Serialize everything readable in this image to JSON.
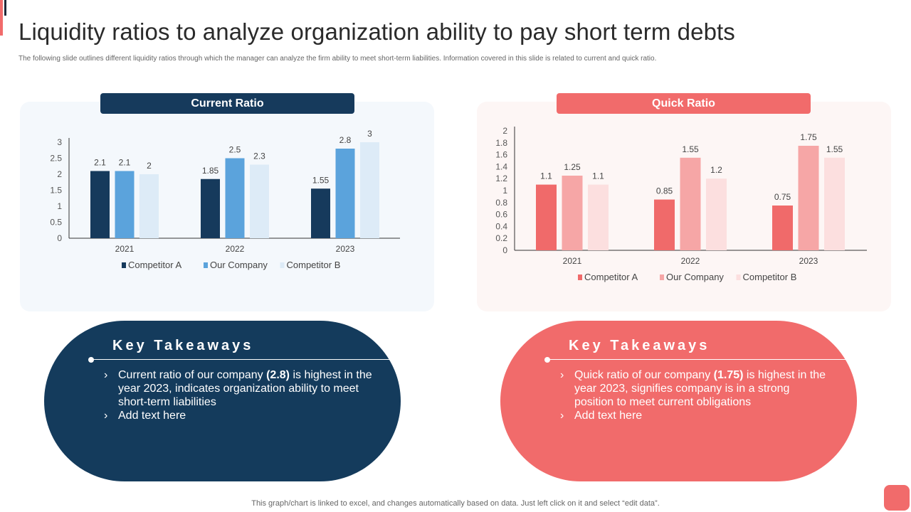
{
  "title": "Liquidity ratios to analyze organization ability to pay short term debts",
  "subtitle": "The following slide outlines different liquidity ratios through which the manager can analyze the firm ability to meet short-term liabilities.  Information covered in this slide is related to current and quick ratio.",
  "footer": "This graph/chart is linked to excel,  and changes automatically based on data. Just left click on it and select “edit data”.",
  "colors": {
    "navy": "#163a5c",
    "coral": "#f16b6b"
  },
  "chart_data": [
    {
      "type": "bar",
      "title": "Current Ratio",
      "categories": [
        "2021",
        "2022",
        "2023"
      ],
      "ylim": [
        0,
        3
      ],
      "yticks": [
        "0",
        "0.5",
        "1",
        "1.5",
        "2",
        "2.5",
        "3"
      ],
      "series": [
        {
          "name": "Competitor A",
          "color": "#163a5c",
          "values": [
            2.1,
            1.85,
            1.55
          ],
          "labels": [
            "2.1",
            "1.85",
            "1.55"
          ]
        },
        {
          "name": "Our Company",
          "color": "#5ba3dc",
          "values": [
            2.1,
            2.5,
            2.8
          ],
          "labels": [
            "2.1",
            "2.5",
            "2.8"
          ]
        },
        {
          "name": "Competitor B",
          "color": "#ddebf7",
          "values": [
            2.0,
            2.3,
            3.0
          ],
          "labels": [
            "2",
            "2.3",
            "3"
          ]
        }
      ]
    },
    {
      "type": "bar",
      "title": "Quick Ratio",
      "categories": [
        "2021",
        "2022",
        "2023"
      ],
      "ylim": [
        0,
        2
      ],
      "yticks": [
        "0",
        "0.2",
        "0.4",
        "0.6",
        "0.8",
        "1",
        "1.2",
        "1.4",
        "1.6",
        "1.8",
        "2"
      ],
      "series": [
        {
          "name": "Competitor A",
          "color": "#f06a6a",
          "values": [
            1.1,
            0.85,
            0.75
          ],
          "labels": [
            "1.1",
            "0.85",
            "0.75"
          ]
        },
        {
          "name": "Our Company",
          "color": "#f6a6a6",
          "values": [
            1.25,
            1.55,
            1.75
          ],
          "labels": [
            "1.25",
            "1.55",
            "1.75"
          ]
        },
        {
          "name": "Competitor B",
          "color": "#fcdfdf",
          "values": [
            1.1,
            1.2,
            1.55
          ],
          "labels": [
            "1.1",
            "1.2",
            "1.55"
          ]
        }
      ]
    }
  ],
  "takeaways": [
    {
      "title": "Key Takeaways",
      "items": [
        {
          "pre": "Current ratio of our company ",
          "bold": "(2.8)",
          "post": " is highest in the year 2023, indicates organization ability to meet short-term liabilities"
        },
        {
          "pre": "Add text here",
          "bold": "",
          "post": ""
        }
      ]
    },
    {
      "title": "Key Takeaways",
      "items": [
        {
          "pre": "Quick ratio of our company ",
          "bold": "(1.75)",
          "post": " is highest in the year 2023, signifies company is in a strong position to meet current obligations"
        },
        {
          "pre": "Add text here",
          "bold": "",
          "post": ""
        }
      ]
    }
  ],
  "chevron": "›"
}
